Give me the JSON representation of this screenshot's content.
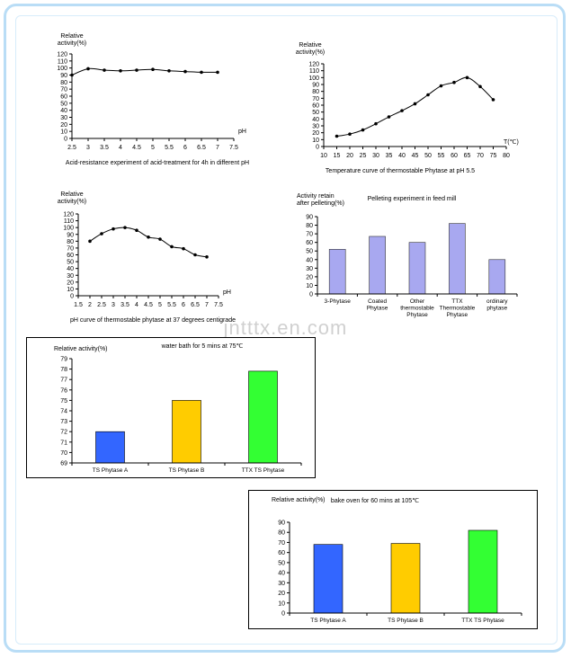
{
  "watermark": "jntttx.en.com",
  "colors": {
    "frame": "#b9ddf6",
    "bar_lavender": "#a8a8f0",
    "bar_blue": "#3366ff",
    "bar_yellow": "#ffcc00",
    "bar_green": "#33ff33",
    "line": "#000000"
  },
  "chart_data": [
    {
      "id": "acid",
      "type": "line",
      "ylabel": [
        "Relative",
        "activity(%)"
      ],
      "xlabel": "pH",
      "caption": "Acid-resistance experiment of acid-treatment for 4h in different pH",
      "xlim": [
        2.5,
        7.5
      ],
      "ylim": [
        0,
        120
      ],
      "xticks": [
        2.5,
        3,
        3.5,
        4,
        4.5,
        5,
        5.5,
        6,
        6.5,
        7,
        7.5
      ],
      "xtick_labels": [
        "2.5",
        "3",
        "3.5",
        "4",
        "4.5",
        "5",
        "5.5",
        "6",
        "6.5",
        "7",
        "7.5"
      ],
      "yticks": [
        0,
        10,
        20,
        30,
        40,
        50,
        60,
        70,
        80,
        90,
        100,
        110,
        120
      ],
      "yticks_labels": [
        "0",
        "10",
        "20",
        "30",
        "40",
        "50",
        "60",
        "70",
        "80",
        "90",
        "100",
        "110",
        "120"
      ],
      "x": [
        2.5,
        3,
        3.5,
        4,
        4.5,
        5,
        5.5,
        6,
        6.5,
        7
      ],
      "y": [
        90,
        99,
        97,
        96,
        97,
        98,
        96,
        95,
        94,
        94
      ]
    },
    {
      "id": "temp",
      "type": "line",
      "ylabel": [
        "Relative",
        "activity(%)"
      ],
      "xlabel": "T(℃)",
      "caption": "Temperature curve of thermostable Phytase at pH 5.5",
      "xlim": [
        10,
        80
      ],
      "ylim": [
        0,
        120
      ],
      "xticks": [
        10,
        15,
        20,
        25,
        30,
        35,
        40,
        45,
        50,
        55,
        60,
        65,
        70,
        75,
        80
      ],
      "xtick_labels": [
        "10",
        "15",
        "20",
        "25",
        "30",
        "35",
        "40",
        "45",
        "50",
        "55",
        "60",
        "65",
        "70",
        "75",
        "80"
      ],
      "yticks": [
        0,
        10,
        20,
        30,
        40,
        50,
        60,
        70,
        80,
        90,
        100,
        110,
        120
      ],
      "yticks_labels": [
        "0",
        "10",
        "20",
        "30",
        "40",
        "50",
        "60",
        "70",
        "80",
        "90",
        "100",
        "110",
        "120"
      ],
      "x": [
        15,
        20,
        25,
        30,
        35,
        40,
        45,
        50,
        55,
        60,
        65,
        70,
        75
      ],
      "y": [
        15,
        18,
        24,
        33,
        43,
        52,
        62,
        75,
        88,
        93,
        100,
        87,
        68
      ]
    },
    {
      "id": "ph",
      "type": "line",
      "ylabel": [
        "Relative",
        "activity(%)"
      ],
      "xlabel": "pH",
      "caption": "pH curve of thermostable phytase at 37 degrees centigrade",
      "xlim": [
        1.5,
        7.5
      ],
      "ylim": [
        0,
        120
      ],
      "xticks": [
        1.5,
        2,
        2.5,
        3,
        3.5,
        4,
        4.5,
        5,
        5.5,
        6,
        6.5,
        7,
        7.5
      ],
      "xtick_labels": [
        "1.5",
        "2",
        "2.5",
        "3",
        "3.5",
        "4",
        "4.5",
        "5",
        "5.5",
        "6",
        "6.5",
        "7",
        "7.5"
      ],
      "yticks": [
        0,
        10,
        20,
        30,
        40,
        50,
        60,
        70,
        80,
        90,
        100,
        110,
        120
      ],
      "yticks_labels": [
        "0",
        "10",
        "20",
        "30",
        "40",
        "50",
        "60",
        "70",
        "80",
        "90",
        "100",
        "110",
        "120"
      ],
      "x": [
        2,
        2.5,
        3,
        3.5,
        4,
        4.5,
        5,
        5.5,
        6,
        6.5,
        7
      ],
      "y": [
        80,
        91,
        98,
        100,
        96,
        86,
        83,
        72,
        69,
        60,
        57
      ]
    },
    {
      "id": "pellet",
      "type": "bar",
      "title": "Pelleting experiment in feed mill",
      "ylabel": [
        "Activity retain",
        "after pelleting(%)"
      ],
      "ylim": [
        0,
        90
      ],
      "yticks": [
        0,
        10,
        20,
        30,
        40,
        50,
        60,
        70,
        80,
        90
      ],
      "yticks_labels": [
        "0",
        "10",
        "20",
        "30",
        "40",
        "50",
        "60",
        "70",
        "80",
        "90"
      ],
      "categories": [
        [
          "3-Phytase"
        ],
        [
          "Coated",
          "Phytase"
        ],
        [
          "Other",
          "thermostable",
          "Phytase"
        ],
        [
          "TTX",
          "Thermostable",
          "Phytase"
        ],
        [
          "ordinary",
          "phytase"
        ]
      ],
      "values": [
        52,
        67,
        60,
        82,
        40
      ]
    },
    {
      "id": "water",
      "type": "bar",
      "title": "water bath for 5 mins at 75℃",
      "ylabel": [
        "Relative activity(%)"
      ],
      "ylim": [
        69,
        79
      ],
      "yticks": [
        69,
        70,
        71,
        72,
        73,
        74,
        75,
        76,
        77,
        78,
        79
      ],
      "yticks_labels": [
        "69",
        "70",
        "71",
        "72",
        "73",
        "74",
        "75",
        "76",
        "77",
        "78",
        "79"
      ],
      "categories": [
        [
          "TS Phytase A"
        ],
        [
          "TS Phytase B"
        ],
        [
          "TTX TS Phytase"
        ]
      ],
      "values": [
        72,
        75,
        77.8
      ]
    },
    {
      "id": "bake",
      "type": "bar",
      "title": "bake oven for 60 mins at 105℃",
      "ylabel": [
        "Relative activity(%)"
      ],
      "ylim": [
        0,
        90
      ],
      "yticks": [
        0,
        10,
        20,
        30,
        40,
        50,
        60,
        70,
        80,
        90
      ],
      "yticks_labels": [
        "0",
        "10",
        "20",
        "30",
        "40",
        "50",
        "60",
        "70",
        "80",
        "90"
      ],
      "categories": [
        [
          "TS Phytase A"
        ],
        [
          "TS Phytase B"
        ],
        [
          "TTX TS Phytase"
        ]
      ],
      "values": [
        68,
        69,
        82
      ]
    }
  ]
}
